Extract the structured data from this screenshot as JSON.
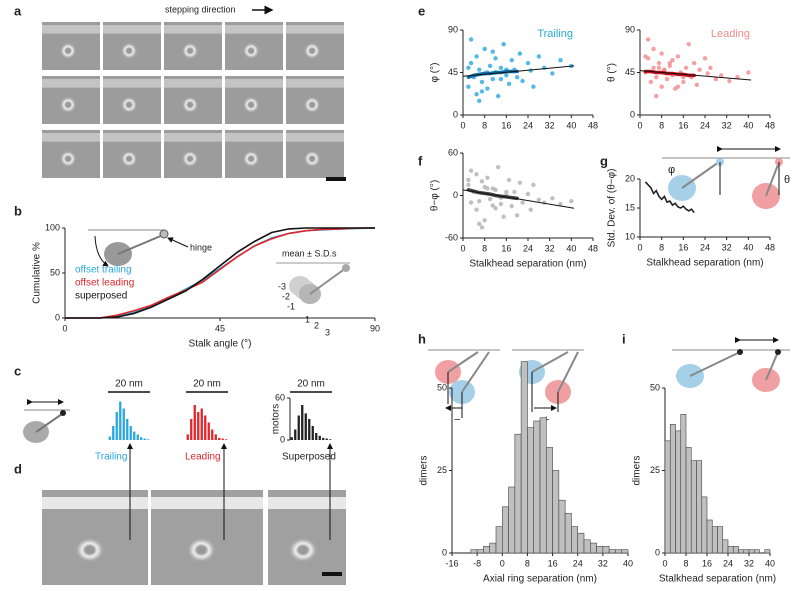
{
  "chart_data": [
    {
      "type": "line",
      "xlabel": "Stalk angle (°)",
      "ylabel": "Cumulative %",
      "xlim": [
        0,
        90
      ],
      "xticks": [
        0,
        45,
        90
      ],
      "ylim": [
        0,
        100
      ],
      "yticks": [
        0,
        50,
        100
      ],
      "x": [
        0,
        10,
        15,
        20,
        25,
        30,
        35,
        40,
        45,
        50,
        55,
        60,
        65,
        70,
        75,
        80,
        85,
        90
      ],
      "series": [
        {
          "name": "offset trailing",
          "color": "#29a8e0",
          "values": [
            0,
            0,
            2,
            6,
            13,
            22,
            32,
            42,
            55,
            68,
            80,
            89,
            94,
            97,
            98,
            99,
            99.5,
            100
          ]
        },
        {
          "name": "offset leading",
          "color": "#e0262b",
          "values": [
            0,
            0,
            3,
            8,
            14,
            23,
            31,
            40,
            54,
            68,
            80,
            88,
            94,
            97,
            98.5,
            99,
            100,
            100
          ]
        },
        {
          "name": "superposed",
          "color": "#111111",
          "values": [
            0,
            0,
            1,
            5,
            12,
            21,
            30,
            43,
            58,
            73,
            85,
            95,
            99,
            100,
            100,
            100,
            100,
            100
          ]
        }
      ]
    },
    {
      "type": "bar",
      "scale_label": "20 nm",
      "color": "#29a8e0",
      "ylim": [
        0,
        60
      ],
      "categories": [
        null,
        null,
        null,
        null,
        null,
        null,
        null,
        null,
        null,
        null,
        null,
        null
      ],
      "values": [
        5,
        20,
        40,
        55,
        45,
        30,
        20,
        12,
        8,
        4,
        2,
        1
      ]
    },
    {
      "type": "bar",
      "scale_label": "20 nm",
      "color": "#e0262b",
      "ylim": [
        0,
        60
      ],
      "categories": [
        null,
        null,
        null,
        null,
        null,
        null,
        null,
        null,
        null,
        null,
        null,
        null
      ],
      "values": [
        8,
        30,
        50,
        40,
        45,
        35,
        25,
        15,
        8,
        3,
        2,
        1
      ]
    },
    {
      "type": "bar",
      "scale_label": "20 nm",
      "ylabel": "motors",
      "color": "#222222",
      "ylim": [
        0,
        60
      ],
      "yticks": [
        0,
        60
      ],
      "categories": [
        null,
        null,
        null,
        null,
        null,
        null,
        null,
        null,
        null,
        null,
        null,
        null
      ],
      "values": [
        4,
        15,
        35,
        50,
        38,
        30,
        20,
        10,
        6,
        3,
        2,
        1
      ]
    },
    {
      "type": "scatter",
      "ylabel": "φ (°)",
      "xlim": [
        0,
        48
      ],
      "xticks": [
        0,
        8,
        16,
        24,
        32,
        40,
        48
      ],
      "ylim": [
        0,
        90
      ],
      "yticks": [
        0,
        45,
        90
      ],
      "series": [
        {
          "name": "Trailing",
          "color": "#29a8e0",
          "x": [
            2,
            3,
            4,
            5,
            5,
            6,
            7,
            8,
            8,
            9,
            10,
            11,
            12,
            12,
            13,
            14,
            15,
            16,
            17,
            18,
            19,
            20,
            21,
            22,
            24,
            25,
            26,
            28,
            30,
            33,
            36,
            40,
            3,
            6,
            9,
            11,
            14,
            2,
            7,
            16
          ],
          "values": [
            30,
            55,
            40,
            62,
            22,
            48,
            35,
            70,
            44,
            28,
            52,
            38,
            60,
            45,
            20,
            50,
            75,
            42,
            33,
            58,
            48,
            40,
            65,
            36,
            55,
            47,
            30,
            62,
            50,
            44,
            58,
            52,
            80,
            15,
            45,
            67,
            38,
            50,
            25,
            48
          ]
        }
      ],
      "mean": {
        "color": "#0b6fa8",
        "x": [
          2,
          4,
          6,
          8,
          10,
          12,
          14,
          16,
          18,
          20
        ],
        "values": [
          40,
          42,
          43,
          44,
          44,
          45,
          45,
          46,
          46,
          46
        ]
      },
      "trend": {
        "x": [
          0,
          41
        ],
        "values": [
          41,
          52
        ]
      }
    },
    {
      "type": "scatter",
      "ylabel": "θ (°)",
      "xlim": [
        0,
        48
      ],
      "xticks": [
        0,
        8,
        16,
        24,
        32,
        40,
        48
      ],
      "ylim": [
        0,
        90
      ],
      "yticks": [
        0,
        45,
        90
      ],
      "series": [
        {
          "name": "Leading",
          "color": "#f08a8c",
          "x": [
            2,
            3,
            4,
            5,
            5,
            6,
            7,
            8,
            8,
            9,
            10,
            11,
            12,
            12,
            13,
            14,
            15,
            16,
            17,
            18,
            19,
            20,
            21,
            22,
            24,
            25,
            26,
            28,
            30,
            33,
            36,
            40,
            3,
            6,
            9,
            11,
            14,
            2,
            7,
            16
          ],
          "values": [
            45,
            60,
            35,
            50,
            70,
            40,
            55,
            30,
            65,
            48,
            38,
            52,
            42,
            58,
            28,
            62,
            45,
            35,
            50,
            75,
            40,
            55,
            32,
            48,
            60,
            44,
            50,
            38,
            42,
            36,
            40,
            45,
            80,
            20,
            47,
            55,
            30,
            62,
            50,
            40
          ]
        }
      ],
      "mean": {
        "color": "#c8101a",
        "x": [
          2,
          4,
          6,
          8,
          10,
          12,
          14,
          16,
          18,
          20
        ],
        "values": [
          46,
          46,
          45,
          45,
          44,
          44,
          43,
          43,
          42,
          42
        ]
      },
      "trend": {
        "x": [
          0,
          41
        ],
        "values": [
          47,
          37
        ]
      }
    },
    {
      "type": "scatter",
      "ylabel": "θ−φ (°)",
      "xlabel": "Stalkhead separation (nm)",
      "xlim": [
        0,
        48
      ],
      "xticks": [
        0,
        8,
        16,
        24,
        32,
        40,
        48
      ],
      "ylim": [
        -60,
        60
      ],
      "yticks": [
        -60,
        0,
        60
      ],
      "series": [
        {
          "color": "#b0b0b0",
          "x": [
            2,
            3,
            4,
            5,
            5,
            6,
            7,
            8,
            8,
            9,
            10,
            11,
            12,
            12,
            13,
            14,
            15,
            16,
            17,
            18,
            19,
            20,
            21,
            22,
            24,
            25,
            26,
            28,
            30,
            33,
            36,
            40,
            3,
            6,
            9,
            11,
            14,
            2,
            7,
            16
          ],
          "values": [
            15,
            -10,
            5,
            -20,
            30,
            -8,
            20,
            -35,
            12,
            25,
            -5,
            10,
            -18,
            8,
            40,
            -12,
            -30,
            0,
            22,
            -15,
            5,
            -28,
            18,
            -10,
            2,
            -20,
            15,
            -6,
            -10,
            -4,
            -12,
            -8,
            35,
            -40,
            10,
            -14,
            -3,
            22,
            -45,
            5
          ]
        }
      ],
      "mean": {
        "color": "#444444",
        "x": [
          2,
          4,
          6,
          8,
          10,
          12,
          14,
          16,
          18,
          20
        ],
        "values": [
          8,
          6,
          4,
          3,
          2,
          0,
          -1,
          -2,
          -3,
          -4
        ]
      },
      "trend": {
        "x": [
          0,
          41
        ],
        "values": [
          8,
          -18
        ]
      }
    },
    {
      "type": "line",
      "ylabel": "Std. Dev. of (θ−φ)",
      "xlabel": "Stalkhead separation (nm)",
      "xlim": [
        0,
        48
      ],
      "xticks": [
        0,
        8,
        16,
        24,
        32,
        40,
        48
      ],
      "ylim": [
        10,
        20
      ],
      "yticks": [
        10,
        15,
        20
      ],
      "x": [
        2,
        3,
        4,
        5,
        6,
        7,
        8,
        9,
        10,
        11,
        12,
        13,
        14,
        15,
        16,
        17,
        18,
        19,
        20
      ],
      "series": [
        {
          "color": "#222222",
          "values": [
            19.5,
            19,
            18.5,
            17.5,
            18,
            17,
            16.5,
            17,
            16,
            16.2,
            15.5,
            15.8,
            15.2,
            15,
            15.3,
            14.8,
            14.5,
            14.8,
            14.2
          ]
        }
      ]
    },
    {
      "type": "histogram",
      "ylabel": "dimers",
      "xlabel": "Axial ring separation (nm)",
      "color": "#c0c0c0",
      "xlim": [
        -16,
        40
      ],
      "xticks": [
        -16,
        -8,
        0,
        8,
        16,
        24,
        32,
        40
      ],
      "ylim": [
        0,
        50
      ],
      "yticks": [
        0,
        25,
        50
      ],
      "bins": [
        -10,
        -8,
        -6,
        -4,
        -2,
        0,
        2,
        4,
        6,
        8,
        10,
        12,
        14,
        16,
        18,
        20,
        22,
        24,
        26,
        28,
        30,
        32,
        34,
        36,
        38,
        40
      ],
      "values": [
        1,
        1,
        2,
        3,
        8,
        14,
        20,
        36,
        58,
        38,
        40,
        41,
        32,
        25,
        16,
        12,
        8,
        6,
        4,
        3,
        2,
        2,
        1,
        1,
        1
      ]
    },
    {
      "type": "histogram",
      "ylabel": "dimers",
      "xlabel": "Stalkhead separation (nm)",
      "color": "#c0c0c0",
      "xlim": [
        0,
        40
      ],
      "xticks": [
        0,
        8,
        16,
        24,
        32,
        40
      ],
      "ylim": [
        0,
        50
      ],
      "yticks": [
        0,
        25,
        50
      ],
      "bins": [
        0,
        2,
        4,
        6,
        8,
        10,
        12,
        14,
        16,
        18,
        20,
        22,
        24,
        26,
        28,
        30,
        32,
        34,
        36,
        38,
        40
      ],
      "values": [
        34,
        39,
        37,
        42,
        32,
        28,
        28,
        17,
        10,
        8,
        8,
        4,
        2,
        2,
        1,
        1,
        1,
        1,
        0,
        1
      ]
    }
  ],
  "panels": [
    "a",
    "b",
    "c",
    "d",
    "e",
    "f",
    "g",
    "h",
    "i"
  ],
  "annotations": {
    "stepping_direction": "stepping direction",
    "hinge": "hinge",
    "mean_sd": "mean ± S.D.s",
    "sd_steps": [
      "-3",
      "-2",
      "-1",
      "1",
      "2",
      "3"
    ],
    "d_labels": [
      "Trailing",
      "Leading",
      "Superposed"
    ],
    "angles": [
      "φ",
      "θ"
    ],
    "signs": [
      "−",
      "+"
    ]
  }
}
